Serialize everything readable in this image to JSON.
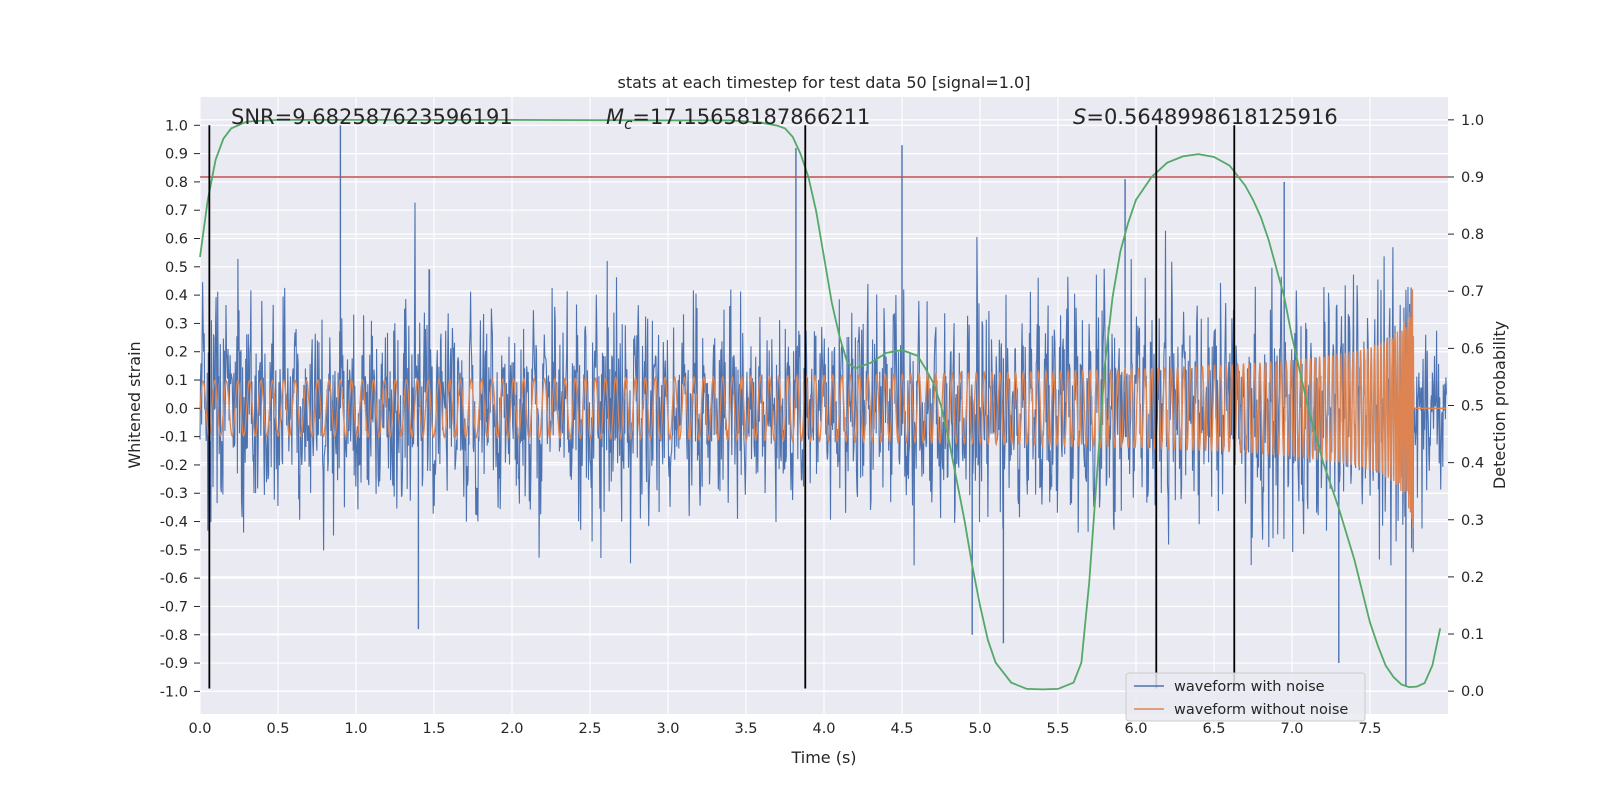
{
  "chart_data": {
    "type": "line",
    "title": "stats at each timestep for test data 50 [signal=1.0]",
    "xlabel": "Time (s)",
    "ylabel": "Whitened strain",
    "y2label": "Detection probability",
    "xlim": [
      0.0,
      8.0
    ],
    "ylim": [
      -1.08,
      1.1
    ],
    "y2lim": [
      -0.04,
      1.04
    ],
    "xticks": [
      "0.0",
      "0.5",
      "1.0",
      "1.5",
      "2.0",
      "2.5",
      "3.0",
      "3.5",
      "4.0",
      "4.5",
      "5.0",
      "5.5",
      "6.0",
      "6.5",
      "7.0",
      "7.5"
    ],
    "yticks": [
      "1.0",
      "0.9",
      "0.8",
      "0.7",
      "0.6",
      "0.5",
      "0.4",
      "0.3",
      "0.2",
      "0.1",
      "0.0",
      "-0.1",
      "-0.2",
      "-0.3",
      "-0.4",
      "-0.5",
      "-0.6",
      "-0.7",
      "-0.8",
      "-0.9",
      "-1.0"
    ],
    "y2ticks": [
      "1.0",
      "0.9",
      "0.8",
      "0.7",
      "0.6",
      "0.5",
      "0.4",
      "0.3",
      "0.2",
      "0.1",
      "0.0"
    ],
    "grid": true,
    "annotations": {
      "snr": "SNR=9.682587623596191",
      "mc_symbol": "M",
      "mc_sub": "c",
      "mc_value": "=17.15658187866211",
      "s_symbol": "S",
      "s_value": "=0.5648998618125916"
    },
    "threshold": {
      "axis": "right",
      "value": 0.9,
      "color": "#c44e52"
    },
    "vertical_markers": [
      0.06,
      3.88,
      6.13,
      6.63
    ],
    "series": [
      {
        "name": "waveform with noise",
        "axis": "left",
        "color": "#4c72b0",
        "description": "whitened strain noise, roughly |y|<0.4 with spikes up to ~1.0",
        "spikes": [
          [
            0.9,
            1.0
          ],
          [
            3.82,
            0.92
          ],
          [
            4.5,
            0.93
          ],
          [
            5.93,
            0.81
          ],
          [
            6.95,
            0.8
          ],
          [
            1.4,
            -0.78
          ],
          [
            4.95,
            -0.8
          ],
          [
            5.15,
            -0.83
          ],
          [
            7.3,
            -0.9
          ],
          [
            7.73,
            -0.98
          ]
        ]
      },
      {
        "name": "waveform without noise",
        "axis": "left",
        "color": "#dd8452",
        "description": "chirp signal, amplitude growing to ~0.5 at t≈7.77 s, merger near t≈7.78 s",
        "merger_time": 7.78,
        "peak_amplitude": 0.5
      },
      {
        "name": "detection probability",
        "axis": "right",
        "color": "#55a868",
        "x": [
          0.0,
          0.05,
          0.1,
          0.15,
          0.2,
          0.3,
          0.5,
          1.0,
          2.0,
          3.0,
          3.4,
          3.6,
          3.7,
          3.75,
          3.8,
          3.85,
          3.9,
          3.95,
          4.0,
          4.05,
          4.1,
          4.15,
          4.2,
          4.3,
          4.4,
          4.5,
          4.6,
          4.65,
          4.7,
          4.75,
          4.8,
          4.85,
          4.9,
          4.95,
          5.0,
          5.05,
          5.1,
          5.2,
          5.3,
          5.4,
          5.5,
          5.6,
          5.65,
          5.7,
          5.75,
          5.8,
          5.85,
          5.9,
          5.95,
          6.0,
          6.1,
          6.2,
          6.3,
          6.4,
          6.5,
          6.6,
          6.7,
          6.75,
          6.8,
          6.85,
          6.9,
          6.95,
          7.0,
          7.05,
          7.1,
          7.15,
          7.2,
          7.3,
          7.4,
          7.5,
          7.55,
          7.6,
          7.65,
          7.7,
          7.75,
          7.8,
          7.85,
          7.9,
          7.95
        ],
        "y": [
          0.76,
          0.86,
          0.93,
          0.967,
          0.985,
          0.997,
          1.0,
          1.0,
          1.0,
          0.999,
          0.999,
          0.995,
          0.99,
          0.985,
          0.97,
          0.94,
          0.9,
          0.84,
          0.76,
          0.68,
          0.62,
          0.575,
          0.565,
          0.575,
          0.592,
          0.597,
          0.587,
          0.565,
          0.54,
          0.5,
          0.44,
          0.37,
          0.3,
          0.22,
          0.15,
          0.09,
          0.05,
          0.015,
          0.004,
          0.003,
          0.004,
          0.015,
          0.05,
          0.19,
          0.38,
          0.57,
          0.69,
          0.77,
          0.82,
          0.86,
          0.9,
          0.925,
          0.936,
          0.94,
          0.935,
          0.92,
          0.885,
          0.86,
          0.83,
          0.79,
          0.74,
          0.69,
          0.62,
          0.56,
          0.5,
          0.45,
          0.4,
          0.32,
          0.23,
          0.12,
          0.08,
          0.045,
          0.025,
          0.012,
          0.007,
          0.008,
          0.014,
          0.045,
          0.11
        ]
      }
    ],
    "legend": {
      "position": "lower-right",
      "entries": [
        "waveform with noise",
        "waveform without noise"
      ]
    }
  }
}
